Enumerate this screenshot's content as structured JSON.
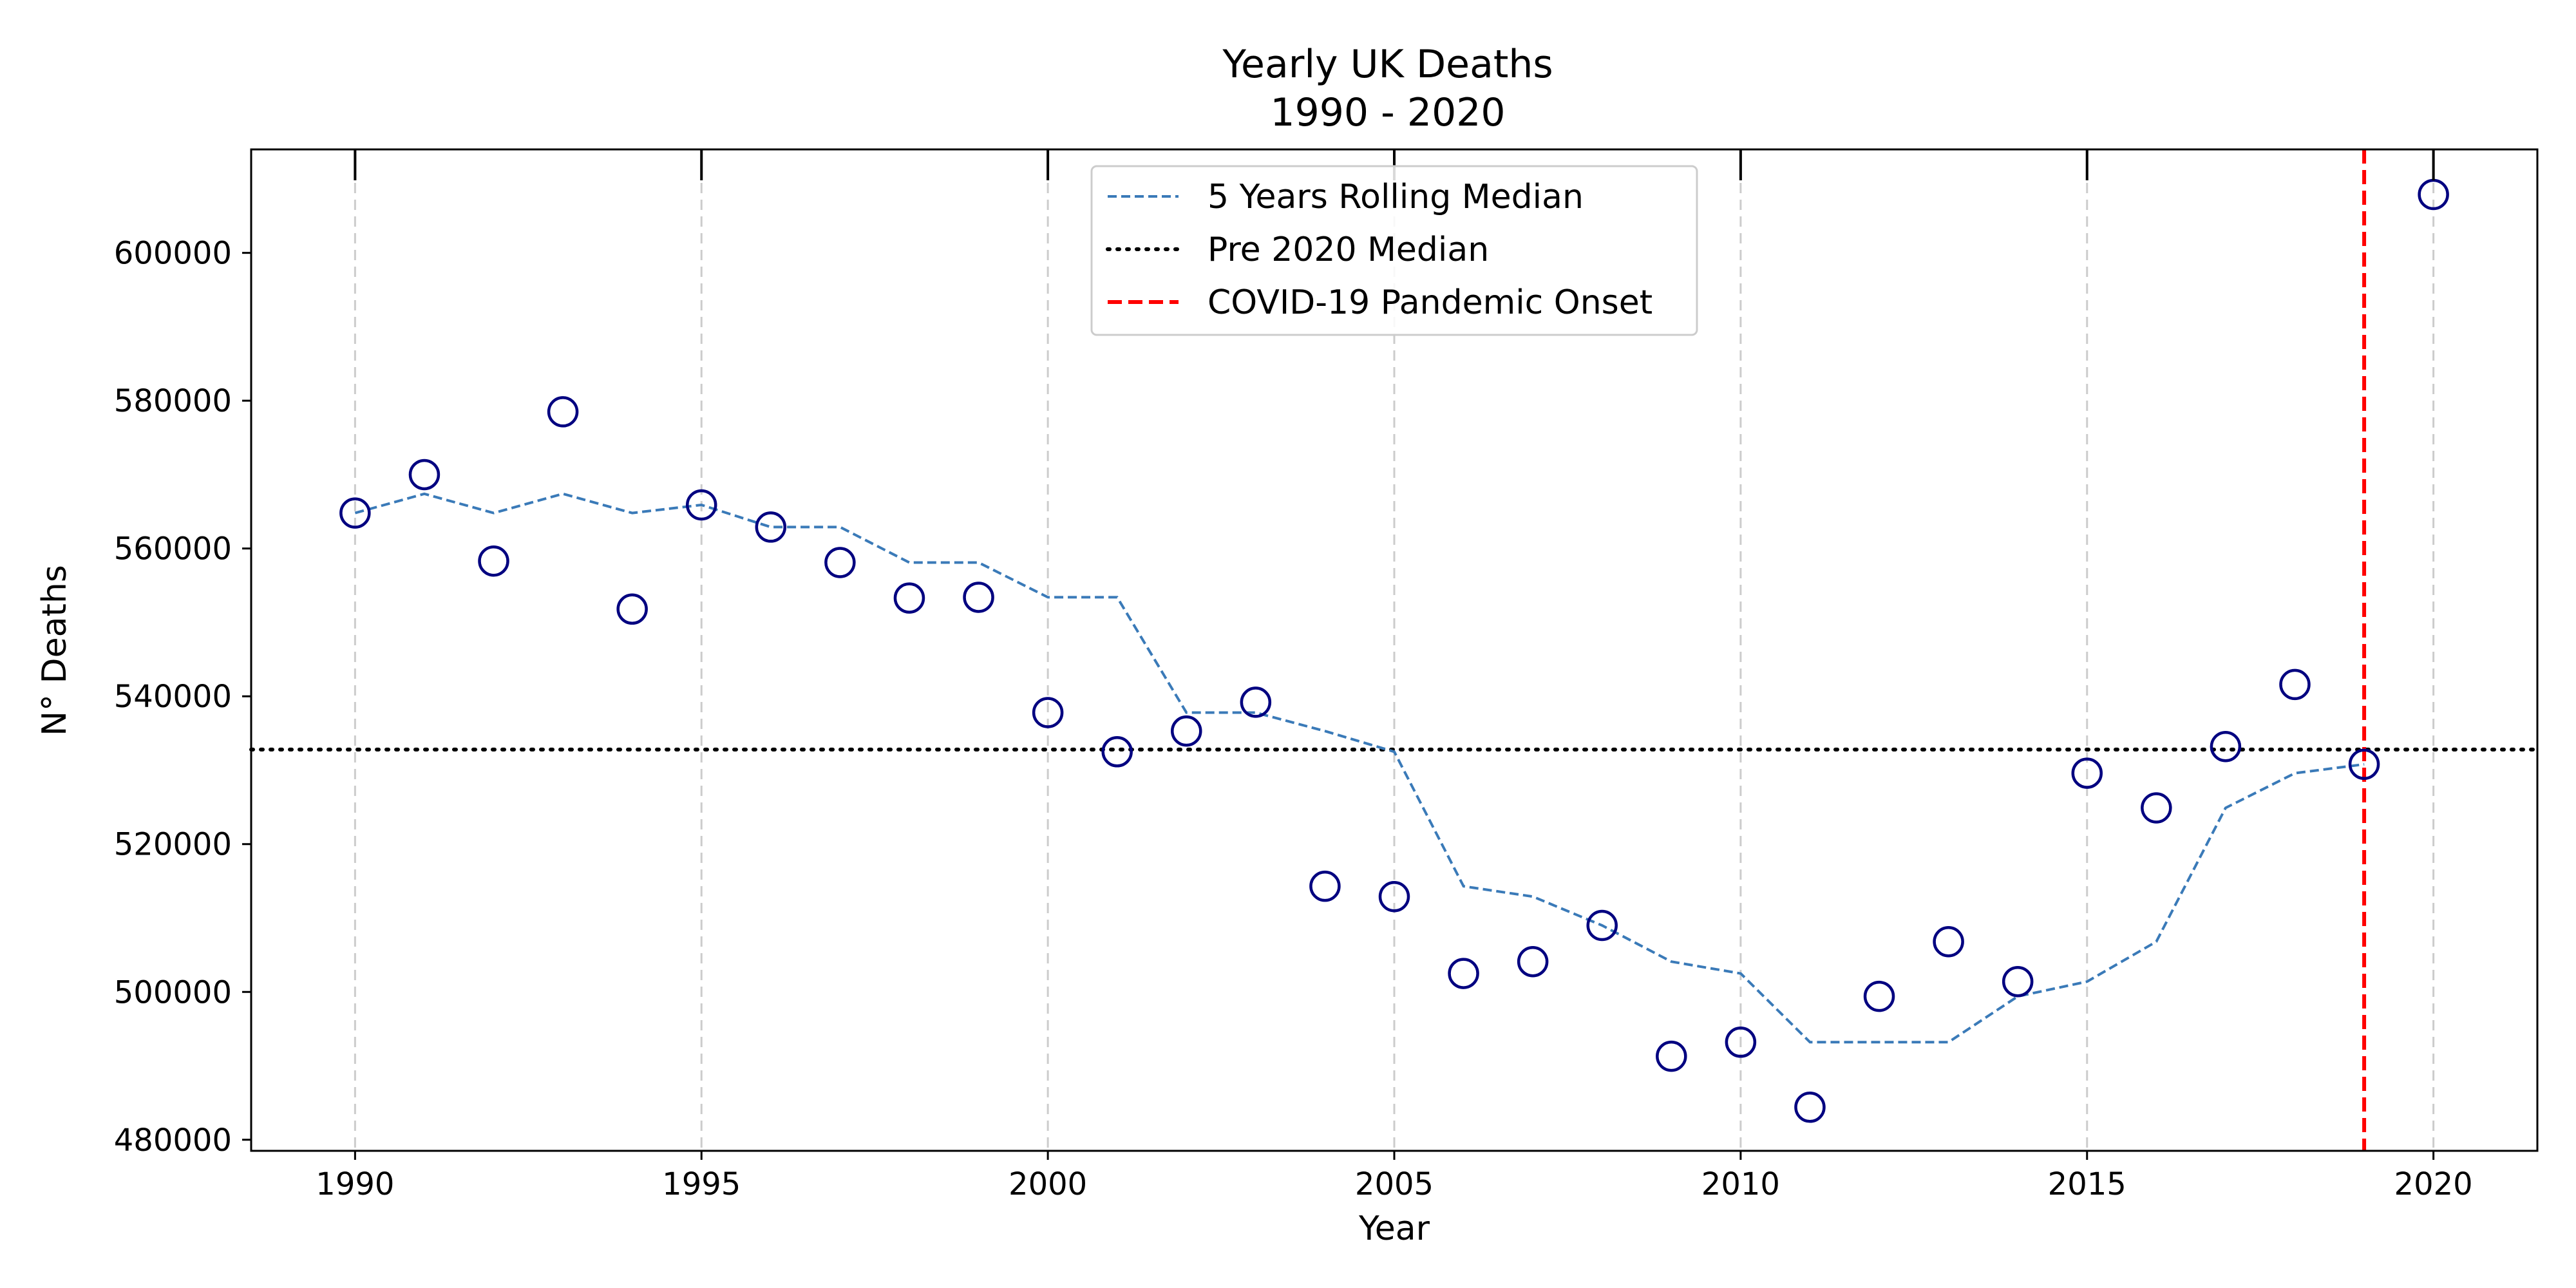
{
  "chart_data": {
    "type": "scatter",
    "title": "Yearly UK Deaths",
    "subtitle": "1990 - 2020",
    "xlabel": "Year",
    "ylabel": "N° Deaths",
    "xlim": [
      1988.5,
      2021.5
    ],
    "ylim": [
      478500,
      614000
    ],
    "xticks": [
      1990,
      1995,
      2000,
      2005,
      2010,
      2015,
      2020
    ],
    "xtick_labels": [
      "1990",
      "1995",
      "2000",
      "2005",
      "2010",
      "2015",
      "2020"
    ],
    "yticks": [
      480000,
      500000,
      520000,
      540000,
      560000,
      580000,
      600000
    ],
    "ytick_labels": [
      "480000",
      "500000",
      "520000",
      "540000",
      "560000",
      "580000",
      "600000"
    ],
    "grid": "vertical dashed at x ticks",
    "legend_position": "top-center",
    "series": [
      {
        "name": "",
        "kind": "scatter",
        "marker": "hollow circle",
        "color": "#000080",
        "x": [
          1990,
          1991,
          1992,
          1993,
          1994,
          1995,
          1996,
          1997,
          1998,
          1999,
          2000,
          2001,
          2002,
          2003,
          2004,
          2005,
          2006,
          2007,
          2008,
          2009,
          2010,
          2011,
          2012,
          2013,
          2014,
          2015,
          2016,
          2017,
          2018,
          2019,
          2020
        ],
        "y": [
          564800,
          570000,
          558300,
          578500,
          551800,
          565900,
          562900,
          558100,
          553300,
          553400,
          537800,
          532500,
          535300,
          539200,
          514300,
          512900,
          502500,
          504100,
          509000,
          491300,
          493200,
          484400,
          499400,
          506800,
          501400,
          529600,
          524900,
          533200,
          541600,
          530800,
          607900
        ]
      },
      {
        "name": "5 Years Rolling Median",
        "kind": "line",
        "style": "dashed",
        "color": "#3a7ab8",
        "x": [
          1990,
          1991,
          1992,
          1993,
          1994,
          1995,
          1996,
          1997,
          1998,
          1999,
          2000,
          2001,
          2002,
          2003,
          2004,
          2005,
          2006,
          2007,
          2008,
          2009,
          2010,
          2011,
          2012,
          2013,
          2014,
          2015,
          2016,
          2017,
          2018,
          2019
        ],
        "y": [
          564800,
          567400,
          564800,
          567400,
          564800,
          565900,
          562900,
          562900,
          558100,
          558100,
          553400,
          553400,
          537800,
          537800,
          535300,
          532500,
          514300,
          512900,
          509000,
          504100,
          502500,
          493200,
          493200,
          493200,
          499400,
          501400,
          506800,
          524900,
          529600,
          530800
        ]
      },
      {
        "name": "Pre 2020 Median",
        "kind": "hline",
        "style": "dotted",
        "color": "#000000",
        "y": 532800
      },
      {
        "name": "COVID-19 Pandemic Onset",
        "kind": "vline",
        "style": "dashed",
        "color": "#ff0000",
        "x": 2019
      }
    ]
  }
}
